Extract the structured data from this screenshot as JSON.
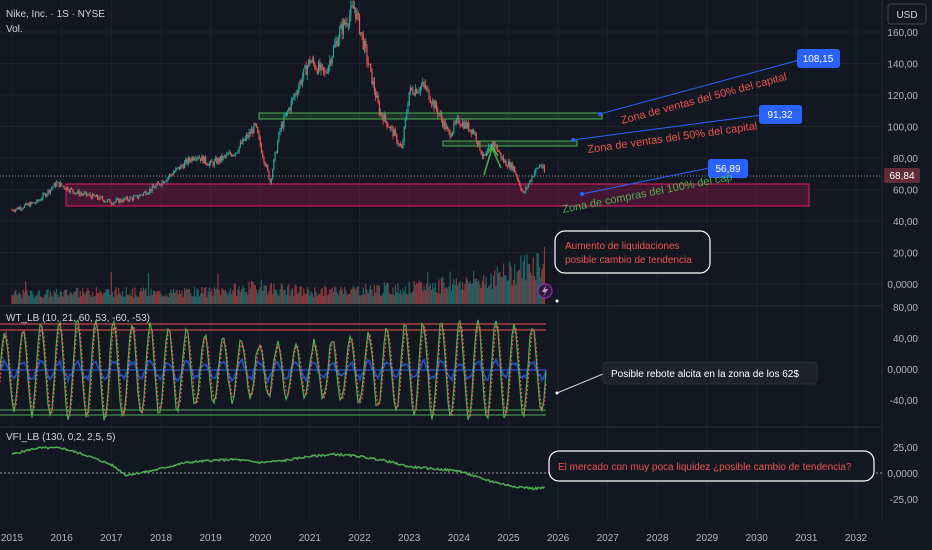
{
  "header": {
    "symbol": "Nike, Inc. · 1S · NYSE",
    "volume_label": "Vol.",
    "currency": "USD",
    "wt_label": "WT_LB (10, 21, 60, 53, -60, -53)",
    "vfi_label": "VFI_LB (130, 0,2, 2,5, 5)"
  },
  "price_axis": [
    "160,00",
    "140,00",
    "120,00",
    "100,00",
    "80,00",
    "60,00",
    "40,00",
    "20,00",
    "0,0000"
  ],
  "wt_axis": [
    "80,00",
    "40,00",
    "0,0000",
    "-40,00"
  ],
  "vfi_axis": [
    "25,00",
    "0,0000",
    "-25,00"
  ],
  "time_axis": [
    "2015",
    "2016",
    "2017",
    "2018",
    "2019",
    "2020",
    "2021",
    "2022",
    "2023",
    "2024",
    "2025",
    "2026",
    "2027",
    "2028",
    "2029",
    "2030",
    "2031",
    "2032"
  ],
  "last_price_label": "68,84",
  "annotations": {
    "zone_sell_1": "Zona de ventas del 50% del capital",
    "zone_sell_2": "Zona de ventas del 50% del capital",
    "zone_buy": "Zona de compras del 100% del cap",
    "target_1": "108,15",
    "target_2": "91,32",
    "target_3": "56,89",
    "note_liquidations_1": "Aumento de liquidaciones",
    "note_liquidations_2": "posible cambio de tendencia",
    "note_rebound": "Posible rebote alcita en la zona de los 62$",
    "note_market": "El mercado con muy poca liquidez ¿posible cambio de tendencia?"
  },
  "colors": {
    "background": "#131722",
    "up": "#26a69a",
    "down": "#ef5350",
    "sell_zone": "#4caf50",
    "buy_zone": "#c2185b",
    "target_badge": "#2962ff",
    "wt_blue": "#2962ff",
    "vfi_line": "#4caf50"
  },
  "chart_data": [
    {
      "type": "candlestick",
      "title": "Nike, Inc. · 1S · NYSE",
      "x_range": [
        2015,
        2032
      ],
      "ylim": [
        0,
        160
      ],
      "last_price": 68.84,
      "close_path": [
        {
          "x": 2015.0,
          "y": 47
        },
        {
          "x": 2015.5,
          "y": 52
        },
        {
          "x": 2015.9,
          "y": 64
        },
        {
          "x": 2016.3,
          "y": 58
        },
        {
          "x": 2016.7,
          "y": 55
        },
        {
          "x": 2017.0,
          "y": 52
        },
        {
          "x": 2017.5,
          "y": 55
        },
        {
          "x": 2017.9,
          "y": 62
        },
        {
          "x": 2018.3,
          "y": 72
        },
        {
          "x": 2018.7,
          "y": 82
        },
        {
          "x": 2019.0,
          "y": 76
        },
        {
          "x": 2019.5,
          "y": 84
        },
        {
          "x": 2019.9,
          "y": 100
        },
        {
          "x": 2020.2,
          "y": 65
        },
        {
          "x": 2020.4,
          "y": 98
        },
        {
          "x": 2020.8,
          "y": 128
        },
        {
          "x": 2021.0,
          "y": 142
        },
        {
          "x": 2021.3,
          "y": 133
        },
        {
          "x": 2021.6,
          "y": 160
        },
        {
          "x": 2021.9,
          "y": 176
        },
        {
          "x": 2022.1,
          "y": 150
        },
        {
          "x": 2022.4,
          "y": 110
        },
        {
          "x": 2022.7,
          "y": 95
        },
        {
          "x": 2022.85,
          "y": 85
        },
        {
          "x": 2023.0,
          "y": 122
        },
        {
          "x": 2023.3,
          "y": 126
        },
        {
          "x": 2023.6,
          "y": 108
        },
        {
          "x": 2023.8,
          "y": 95
        },
        {
          "x": 2024.0,
          "y": 104
        },
        {
          "x": 2024.3,
          "y": 97
        },
        {
          "x": 2024.5,
          "y": 80
        },
        {
          "x": 2024.7,
          "y": 90
        },
        {
          "x": 2024.9,
          "y": 78
        },
        {
          "x": 2025.1,
          "y": 74
        },
        {
          "x": 2025.3,
          "y": 57
        },
        {
          "x": 2025.5,
          "y": 70
        },
        {
          "x": 2025.65,
          "y": 76
        },
        {
          "x": 2025.75,
          "y": 69
        }
      ],
      "zones": [
        {
          "label": "Zona de ventas del 50% del capital",
          "from_x": 2020.0,
          "to_x": 2024.8,
          "low": 104.5,
          "high": 107.5
        },
        {
          "label": "Zona de ventas del 50% del capital",
          "from_x": 2023.7,
          "to_x": 2025.9,
          "low": 88.5,
          "high": 91.5
        },
        {
          "label": "Zona de compras del 100% del cap",
          "from_x": 2016.1,
          "to_x": 2031.0,
          "low": 48,
          "high": 63
        }
      ],
      "targets": [
        108.15,
        91.32,
        56.89
      ]
    },
    {
      "type": "bar",
      "title": "Vol.",
      "x_range": [
        2015,
        2025.8
      ],
      "ylim": [
        0,
        40
      ],
      "relative_volume_path": [
        {
          "x": 2015,
          "v": 8
        },
        {
          "x": 2016,
          "v": 9
        },
        {
          "x": 2017,
          "v": 10
        },
        {
          "x": 2018,
          "v": 9
        },
        {
          "x": 2019,
          "v": 10
        },
        {
          "x": 2020,
          "v": 14
        },
        {
          "x": 2021,
          "v": 10
        },
        {
          "x": 2022,
          "v": 12
        },
        {
          "x": 2023,
          "v": 13
        },
        {
          "x": 2024,
          "v": 17
        },
        {
          "x": 2025,
          "v": 24
        },
        {
          "x": 2025.5,
          "v": 34
        }
      ]
    },
    {
      "type": "line",
      "title": "WT_LB (10, 21, 60, 53, -60, -53)",
      "ylim": [
        -60,
        90
      ],
      "levels": [
        60,
        53,
        0,
        -53,
        -60
      ],
      "wave_amplitude": 55,
      "wave_cycles": 30
    },
    {
      "type": "line",
      "title": "VFI_LB (130, 0,2, 2,5, 5)",
      "ylim": [
        -30,
        35
      ],
      "series": [
        {
          "values": [
            {
              "x": 2015.0,
              "y": 18
            },
            {
              "x": 2015.5,
              "y": 24
            },
            {
              "x": 2016.0,
              "y": 24
            },
            {
              "x": 2016.5,
              "y": 17
            },
            {
              "x": 2017.0,
              "y": 8
            },
            {
              "x": 2017.3,
              "y": -2
            },
            {
              "x": 2017.8,
              "y": 2
            },
            {
              "x": 2018.5,
              "y": 10
            },
            {
              "x": 2019.0,
              "y": 12
            },
            {
              "x": 2019.5,
              "y": 13
            },
            {
              "x": 2020.0,
              "y": 10
            },
            {
              "x": 2020.5,
              "y": 12
            },
            {
              "x": 2021.0,
              "y": 16
            },
            {
              "x": 2021.5,
              "y": 18
            },
            {
              "x": 2022.0,
              "y": 16
            },
            {
              "x": 2022.5,
              "y": 12
            },
            {
              "x": 2023.0,
              "y": 6
            },
            {
              "x": 2023.5,
              "y": 4
            },
            {
              "x": 2024.0,
              "y": 2
            },
            {
              "x": 2024.5,
              "y": -6
            },
            {
              "x": 2025.0,
              "y": -12
            },
            {
              "x": 2025.5,
              "y": -15
            },
            {
              "x": 2025.75,
              "y": -14
            }
          ]
        }
      ]
    }
  ]
}
